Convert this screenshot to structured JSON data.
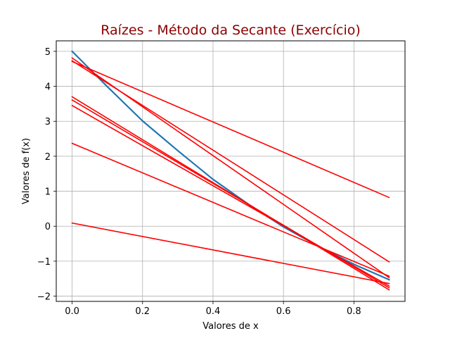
{
  "chart_data": {
    "type": "line",
    "title": "Raízes - Método da Secante (Exercício)",
    "title_color": "#8b0000",
    "xlabel": "Valores de x",
    "ylabel": "Valores de f(x)",
    "xlim": [
      -0.045,
      0.945
    ],
    "ylim": [
      -2.15,
      5.3
    ],
    "xticks": [
      0.0,
      0.2,
      0.4,
      0.6,
      0.8
    ],
    "xtick_labels": [
      "0.0",
      "0.2",
      "0.4",
      "0.6",
      "0.8"
    ],
    "yticks": [
      -2,
      -1,
      0,
      1,
      2,
      3,
      4,
      5
    ],
    "ytick_labels": [
      "−2",
      "−1",
      "0",
      "1",
      "2",
      "3",
      "4",
      "5"
    ],
    "grid": true,
    "series": [
      {
        "color": "#1f77b4",
        "x": [
          0.0,
          0.1,
          0.2,
          0.3,
          0.4,
          0.5,
          0.6,
          0.7,
          0.8,
          0.9
        ],
        "y": [
          5.0,
          3.99,
          3.01,
          2.16,
          1.34,
          0.63,
          -0.02,
          -0.58,
          -1.09,
          -1.53
        ]
      },
      {
        "color": "#ff0000",
        "x": [
          0.0,
          0.9
        ],
        "y": [
          4.81,
          -1.47
        ]
      },
      {
        "color": "#ff0000",
        "x": [
          0.0,
          0.9
        ],
        "y": [
          4.71,
          0.82
        ]
      },
      {
        "color": "#ff0000",
        "x": [
          0.0,
          0.9
        ],
        "y": [
          3.7,
          -1.82
        ]
      },
      {
        "color": "#ff0000",
        "x": [
          0.0,
          0.9
        ],
        "y": [
          3.61,
          -1.76
        ]
      },
      {
        "color": "#ff0000",
        "x": [
          0.0,
          0.9
        ],
        "y": [
          3.45,
          -1.71
        ]
      },
      {
        "color": "#ff0000",
        "x": [
          0.0,
          0.9
        ],
        "y": [
          2.37,
          -1.43
        ]
      },
      {
        "color": "#ff0000",
        "x": [
          0.0,
          0.9
        ],
        "y": [
          0.09,
          -1.64
        ]
      },
      {
        "color": "#ff0000",
        "x": [
          0.0,
          0.9
        ],
        "y": [
          4.73,
          -1.02
        ]
      }
    ]
  }
}
